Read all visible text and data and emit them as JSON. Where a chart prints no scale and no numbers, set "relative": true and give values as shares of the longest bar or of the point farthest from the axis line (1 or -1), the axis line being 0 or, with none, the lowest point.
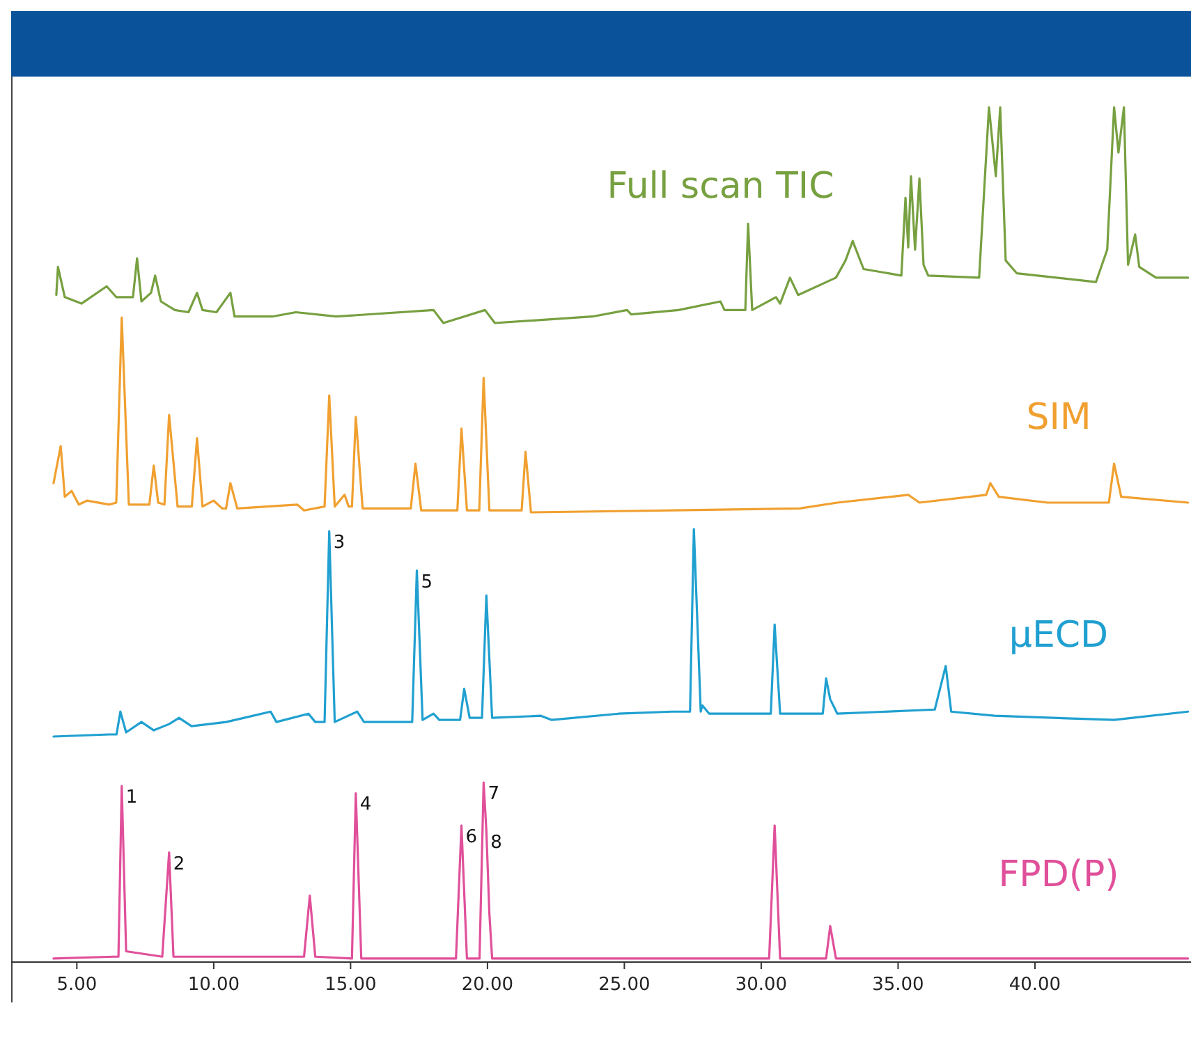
{
  "chart_data": [
    {
      "type": "line",
      "relative": true,
      "xlim": [
        2.6,
        45.7
      ],
      "tick_labels": false,
      "legend": "top",
      "series": [
        {
          "name": "Full scan TIC",
          "color": "#77a040",
          "x": [
            4.25,
            4.31,
            4.56,
            5.17,
            6.09,
            6.44,
            7.05,
            7.2,
            7.36,
            7.71,
            7.86,
            8.07,
            8.58,
            9.08,
            9.39,
            9.59,
            10.1,
            10.61,
            10.76,
            12.14,
            13.0,
            14.47,
            18.03,
            18.39,
            19.91,
            20.27,
            23.83,
            25.1,
            25.25,
            26.98,
            28.51,
            28.66,
            29.42,
            29.52,
            29.67,
            30.54,
            30.69,
            31.05,
            31.35,
            32.73,
            33.08,
            33.34,
            33.74,
            35.12,
            35.27,
            35.37,
            35.47,
            35.62,
            35.78,
            35.93,
            36.1,
            37.96,
            38.32,
            38.57,
            38.73,
            38.93,
            39.34,
            42.23,
            42.64,
            42.89,
            43.05,
            43.25,
            43.4,
            43.66,
            43.81,
            44.42,
            45.59
          ],
          "values": [
            0.13,
            0.26,
            0.12,
            0.09,
            0.17,
            0.12,
            0.12,
            0.3,
            0.1,
            0.14,
            0.22,
            0.1,
            0.06,
            0.05,
            0.14,
            0.06,
            0.05,
            0.14,
            0.03,
            0.03,
            0.05,
            0.03,
            0.06,
            0,
            0.06,
            0,
            0.03,
            0.06,
            0.04,
            0.06,
            0.1,
            0.06,
            0.06,
            0.46,
            0.06,
            0.12,
            0.09,
            0.21,
            0.13,
            0.21,
            0.29,
            0.38,
            0.25,
            0.22,
            0.58,
            0.35,
            0.68,
            0.34,
            0.67,
            0.27,
            0.22,
            0.21,
            1,
            0.68,
            1,
            0.29,
            0.23,
            0.19,
            0.34,
            1,
            0.79,
            1,
            0.27,
            0.41,
            0.26,
            0.21,
            0.21
          ]
        }
      ]
    },
    {
      "type": "line",
      "relative": true,
      "xlim": [
        2.6,
        45.7
      ],
      "tick_labels": false,
      "legend": "right",
      "series": [
        {
          "name": "SIM",
          "color": "#f0a030",
          "x": [
            4.15,
            4.41,
            4.56,
            4.81,
            5.07,
            5.37,
            6.19,
            6.44,
            6.64,
            6.9,
            7.65,
            7.81,
            7.97,
            8.2,
            8.37,
            8.68,
            9.2,
            9.39,
            9.59,
            10.0,
            10.31,
            10.45,
            10.61,
            10.86,
            13.05,
            13.3,
            14.05,
            14.22,
            14.42,
            14.78,
            14.93,
            15.05,
            15.19,
            15.44,
            17.2,
            17.37,
            17.58,
            18.9,
            19.05,
            19.25,
            19.7,
            19.86,
            20.07,
            21.25,
            21.39,
            21.59,
            31.4,
            32.78,
            35.37,
            35.78,
            38.22,
            38.37,
            38.68,
            40.45,
            42.7,
            42.89,
            43.15,
            45.59
          ],
          "values": [
            0.15,
            0.34,
            0.08,
            0.11,
            0.04,
            0.06,
            0.04,
            0.05,
            1,
            0.04,
            0.04,
            0.24,
            0.05,
            0.04,
            0.5,
            0.03,
            0.03,
            0.38,
            0.03,
            0.06,
            0.02,
            0.02,
            0.15,
            0.02,
            0.04,
            0.01,
            0.03,
            0.6,
            0.03,
            0.09,
            0.03,
            0.03,
            0.49,
            0.02,
            0.02,
            0.25,
            0.01,
            0.01,
            0.43,
            0.01,
            0.01,
            0.69,
            0.01,
            0.01,
            0.31,
            0,
            0.02,
            0.05,
            0.09,
            0.05,
            0.09,
            0.15,
            0.08,
            0.05,
            0.05,
            0.25,
            0.08,
            0.05
          ]
        }
      ]
    },
    {
      "type": "line",
      "relative": true,
      "xlim": [
        2.6,
        45.7
      ],
      "tick_labels": false,
      "legend": "right",
      "annotations": [
        {
          "text": "3",
          "x": 14.22,
          "y": 0.99
        },
        {
          "text": "5",
          "x": 17.42,
          "y": 0.8
        }
      ],
      "series": [
        {
          "name": "μECD",
          "color": "#20a0d0",
          "x": [
            4.15,
            6.19,
            6.45,
            6.59,
            6.8,
            7.36,
            7.81,
            8.37,
            8.73,
            9.19,
            10.46,
            12.08,
            12.29,
            13.46,
            13.71,
            14.05,
            14.22,
            14.42,
            15.24,
            15.49,
            17.25,
            17.42,
            17.63,
            18.03,
            18.24,
            19.0,
            19.15,
            19.35,
            19.8,
            19.96,
            20.17,
            21.95,
            22.35,
            24.79,
            26.73,
            27.4,
            27.54,
            27.79,
            27.85,
            28.1,
            30.35,
            30.49,
            30.69,
            32.25,
            32.37,
            32.52,
            32.78,
            36.34,
            36.74,
            36.94,
            38.52,
            42.89,
            45.59
          ],
          "values": [
            0,
            0.01,
            0.01,
            0.12,
            0.02,
            0.07,
            0.03,
            0.06,
            0.09,
            0.05,
            0.07,
            0.12,
            0.07,
            0.11,
            0.07,
            0.07,
            0.99,
            0.07,
            0.12,
            0.07,
            0.07,
            0.8,
            0.08,
            0.11,
            0.08,
            0.08,
            0.23,
            0.09,
            0.09,
            0.68,
            0.09,
            0.1,
            0.08,
            0.11,
            0.12,
            0.12,
            1,
            0.12,
            0.15,
            0.11,
            0.11,
            0.54,
            0.11,
            0.11,
            0.28,
            0.18,
            0.11,
            0.13,
            0.34,
            0.12,
            0.1,
            0.08,
            0.12
          ]
        }
      ]
    },
    {
      "type": "line",
      "relative": true,
      "xlim": [
        2.6,
        45.7
      ],
      "xticks": [
        {
          "value": 5,
          "label": "5.00"
        },
        {
          "value": 10,
          "label": "10.00"
        },
        {
          "value": 15,
          "label": "15.00"
        },
        {
          "value": 20,
          "label": "20.00"
        },
        {
          "value": 25,
          "label": "25.00"
        },
        {
          "value": 30,
          "label": "30.00"
        },
        {
          "value": 35,
          "label": "35.00"
        },
        {
          "value": 40,
          "label": "40.00"
        }
      ],
      "tick_labels": "x",
      "legend": "right",
      "annotations": [
        {
          "text": "1",
          "x": 6.64,
          "y": 0.98
        },
        {
          "text": "2",
          "x": 8.37,
          "y": 0.61
        },
        {
          "text": "4",
          "x": 15.19,
          "y": 0.94
        },
        {
          "text": "6",
          "x": 19.05,
          "y": 0.76
        },
        {
          "text": "7",
          "x": 19.86,
          "y": 1
        },
        {
          "text": "8",
          "x": 19.96,
          "y": 0.73
        }
      ],
      "series": [
        {
          "name": "FPD(P)",
          "color": "#e0509a",
          "x": [
            4.15,
            6.34,
            6.52,
            6.64,
            6.8,
            8.12,
            8.37,
            8.53,
            13.3,
            13.51,
            13.71,
            15.05,
            15.19,
            15.39,
            18.85,
            19.05,
            19.25,
            19.71,
            19.86,
            19.96,
            20.07,
            20.17,
            30.29,
            30.49,
            30.69,
            32.37,
            32.52,
            32.73,
            45.59
          ],
          "values": [
            0.02,
            0.03,
            0.03,
            0.98,
            0.06,
            0.03,
            0.61,
            0.03,
            0.03,
            0.37,
            0.03,
            0.02,
            0.94,
            0.02,
            0.02,
            0.76,
            0.02,
            0.02,
            1,
            0.73,
            0.27,
            0.02,
            0.02,
            0.76,
            0.02,
            0.02,
            0.2,
            0.02,
            0.02
          ]
        }
      ]
    }
  ]
}
